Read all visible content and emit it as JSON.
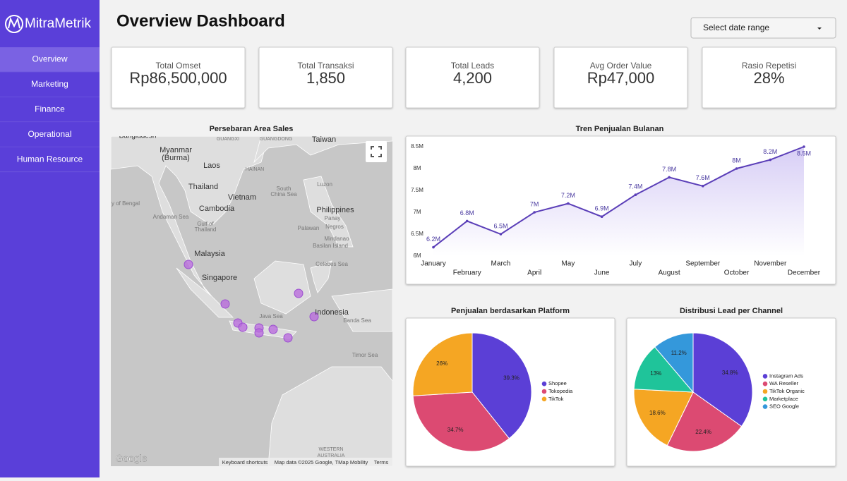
{
  "sidebar": {
    "brand": "MitraMetrik",
    "nav": [
      "Overview",
      "Marketing",
      "Finance",
      "Operational",
      "Human Resource"
    ],
    "active": 0
  },
  "header": {
    "title": "Overview Dashboard",
    "date_select": "Select date range"
  },
  "kpis": [
    {
      "label": "Total Omset",
      "value": "Rp86,500,000"
    },
    {
      "label": "Total Transaksi",
      "value": "1,850"
    },
    {
      "label": "Total Leads",
      "value": "4,200"
    },
    {
      "label": "Avg Order Value",
      "value": "Rp47,000"
    },
    {
      "label": "Rasio Repetisi",
      "value": "28%"
    }
  ],
  "map": {
    "title": "Persebaran Area Sales",
    "labels": [
      "Bangladesh",
      "Myanmar",
      "(Burma)",
      "Laos",
      "Thailand",
      "Vietnam",
      "Cambodia",
      "Taiwan",
      "Philippines",
      "Malaysia",
      "Singapore",
      "Indonesia",
      "South",
      "China Sea",
      "Andaman Sea",
      "Gulf of",
      "Thailand",
      "Java Sea",
      "Banda Sea",
      "Celebes Sea",
      "Timor Sea",
      "Luzon",
      "Palawan",
      "Panay",
      "Negros",
      "Mindanao",
      "Basilan Island",
      "HAINAN",
      "GUANGXI",
      "GUANGDONG",
      "WESTERN",
      "AUSTRALIA",
      "y of Bengal"
    ],
    "logo": "Google",
    "footer": [
      "Keyboard shortcuts",
      "Map data ©2025 Google, TMap Mobility",
      "Terms"
    ]
  },
  "chart_data": [
    {
      "type": "line",
      "title": "Tren Penjualan Bulanan",
      "categories": [
        "January",
        "February",
        "March",
        "April",
        "May",
        "June",
        "July",
        "August",
        "September",
        "October",
        "November",
        "December"
      ],
      "series": [
        {
          "name": "Penjualan",
          "color": "#5b3fb8",
          "values": [
            6200000,
            6800000,
            6500000,
            7000000,
            7200000,
            6900000,
            7400000,
            7800000,
            7600000,
            8000000,
            8200000,
            8500000
          ],
          "value_labels": [
            "6.2M",
            "6.8M",
            "6.5M",
            "7M",
            "7.2M",
            "6.9M",
            "7.4M",
            "7.8M",
            "7.6M",
            "8M",
            "8.2M",
            "8.5M"
          ]
        }
      ],
      "ylim": [
        6000000,
        8500000
      ],
      "yticks": [
        {
          "value": 6000000,
          "label": "6M"
        },
        {
          "value": 6500000,
          "label": "6.5M"
        },
        {
          "value": 7000000,
          "label": "7M"
        },
        {
          "value": 7500000,
          "label": "7.5M"
        },
        {
          "value": 8000000,
          "label": "8M"
        },
        {
          "value": 8500000,
          "label": "8.5M"
        }
      ],
      "grid": false
    },
    {
      "type": "pie",
      "title": "Penjualan berdasarkan Platform",
      "categories": [
        "Shopee",
        "Tokopedia",
        "TikTok"
      ],
      "values": [
        39.3,
        34.7,
        26
      ],
      "value_labels": [
        "39.3%",
        "34.7%",
        "26%"
      ],
      "colors": [
        "#5b3fd6",
        "#dc4a72",
        "#f5a623"
      ],
      "legend": "right"
    },
    {
      "type": "pie",
      "title": "Distribusi Lead per Channel",
      "categories": [
        "Instagram Ads",
        "WA Reseller",
        "TikTok Organic",
        "Marketplace",
        "SEO Google"
      ],
      "values": [
        34.8,
        22.4,
        18.6,
        13,
        11.2
      ],
      "value_labels": [
        "34.8%",
        "22.4%",
        "18.6%",
        "13%",
        "11.2%"
      ],
      "colors": [
        "#5b3fd6",
        "#dc4a72",
        "#f5a623",
        "#1fc49a",
        "#3498db"
      ],
      "legend": "right"
    }
  ]
}
